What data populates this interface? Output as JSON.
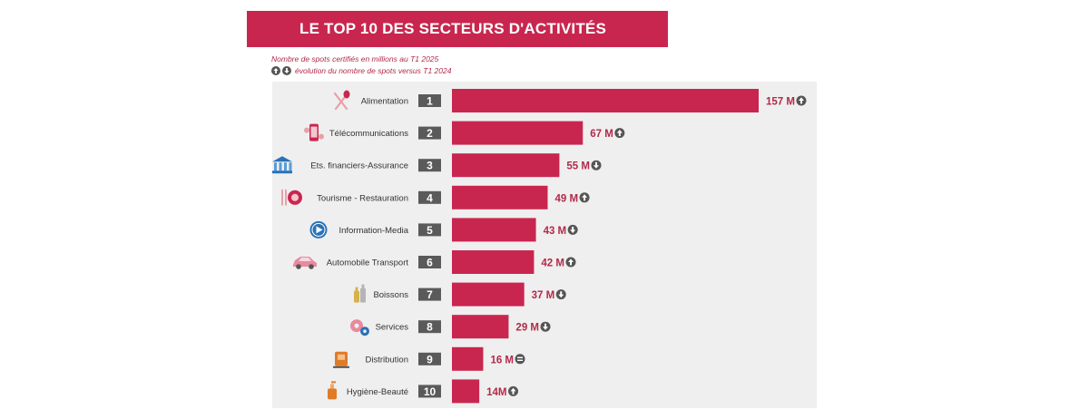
{
  "title": "LE TOP 10 DES SECTEURS D'ACTIVITÉS",
  "subtitle": "Nombre de spots certifiés en millions au T1 2025",
  "legend_text": "évolution du nombre de spots versus T1 2024",
  "legend_icons": [
    "arrow-up-circle-icon",
    "arrow-down-circle-icon"
  ],
  "colors": {
    "bar": "#c9264f",
    "banner": "#c9264f",
    "rank_box": "#5a5a5a",
    "trend_icon": "#555555",
    "panel": "#efefef",
    "value_text": "#b22a4a"
  },
  "chart_data": {
    "type": "bar",
    "orientation": "horizontal",
    "title": "LE TOP 10 DES SECTEURS D'ACTIVITÉS",
    "categories": [
      "Alimentation",
      "Télécommunications",
      "Ets. financiers-Assurance",
      "Tourisme - Restauration",
      "Information-Media",
      "Automobile Transport",
      "Boissons",
      "Services",
      "Distribution",
      "Hygiène-Beauté"
    ],
    "ranks": [
      "1",
      "2",
      "3",
      "4",
      "5",
      "6",
      "7",
      "8",
      "9",
      "10"
    ],
    "values": [
      157,
      67,
      55,
      49,
      43,
      42,
      37,
      29,
      16,
      14
    ],
    "value_labels": [
      "157 M",
      "67 M",
      "55 M",
      "49 M",
      "43 M",
      "42 M",
      "37 M",
      "29 M",
      "16 M",
      "14M"
    ],
    "trends": [
      "up",
      "up",
      "down",
      "up",
      "down",
      "up",
      "down",
      "down",
      "equal",
      "up"
    ],
    "category_icons": [
      "fork-spoon-icon",
      "phone-icon",
      "bank-icon",
      "restaurant-icon",
      "play-icon",
      "car-icon",
      "bottles-icon",
      "gears-icon",
      "shopping-icon",
      "cosmetics-icon"
    ],
    "unit": "M",
    "xlim": [
      0,
      160
    ],
    "grid": false,
    "legend": "top-left"
  }
}
